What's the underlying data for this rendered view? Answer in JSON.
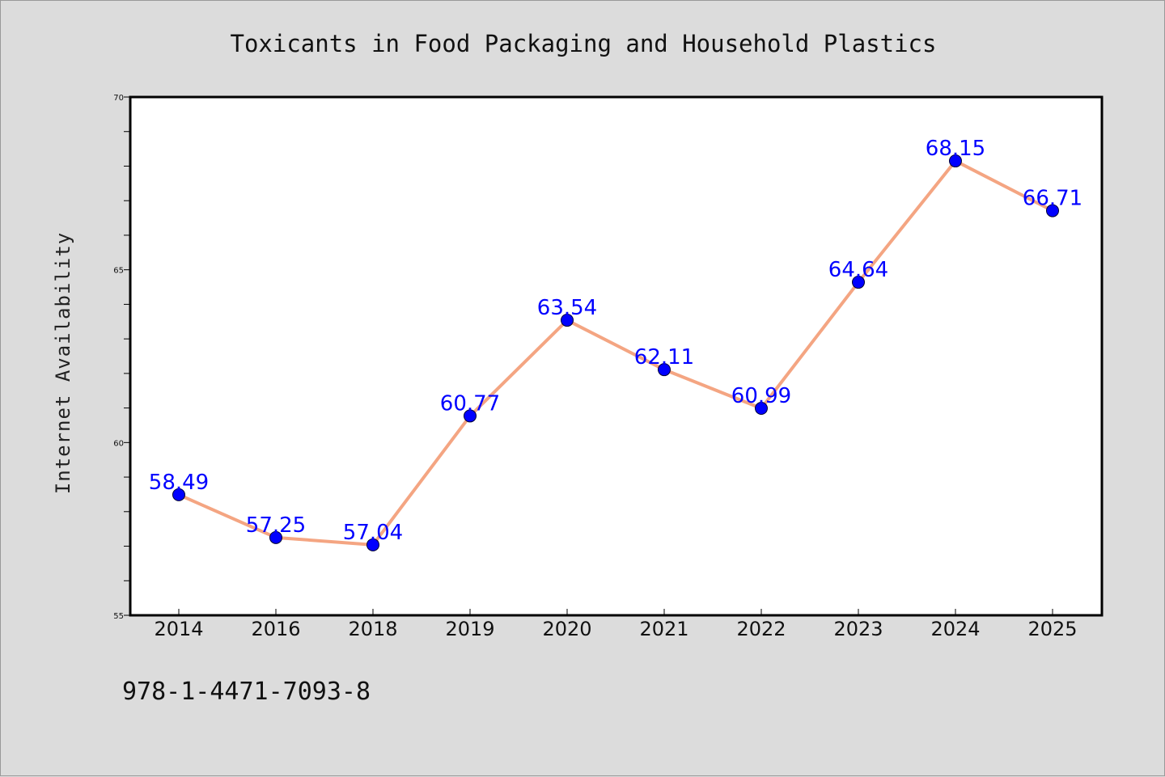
{
  "footer": {
    "isbn": "978-1-4471-7093-8"
  },
  "chart_data": {
    "type": "line",
    "title": "Toxicants in Food Packaging and Household Plastics",
    "xlabel": "",
    "ylabel": "Internet Availability",
    "categories": [
      "2014",
      "2016",
      "2018",
      "2019",
      "2020",
      "2021",
      "2022",
      "2023",
      "2024",
      "2025"
    ],
    "values": [
      58.49,
      57.25,
      57.04,
      60.77,
      63.54,
      62.11,
      60.99,
      64.64,
      68.15,
      66.71
    ],
    "data_labels": [
      "58.49",
      "57.25",
      "57.04",
      "60.77",
      "63.54",
      "62.11",
      "60.99",
      "64.64",
      "68.15",
      "66.71"
    ],
    "ylim": [
      55,
      70
    ],
    "yticks": [
      55,
      60,
      65,
      70
    ],
    "ytick_labels": [
      "55",
      "60",
      "65",
      "70"
    ],
    "grid": false,
    "colors": {
      "line": "#f4a582",
      "marker": "#0000ff",
      "labels": "#0000ff",
      "background": "#dcdcdc",
      "plot_bg": "#ffffff"
    }
  }
}
